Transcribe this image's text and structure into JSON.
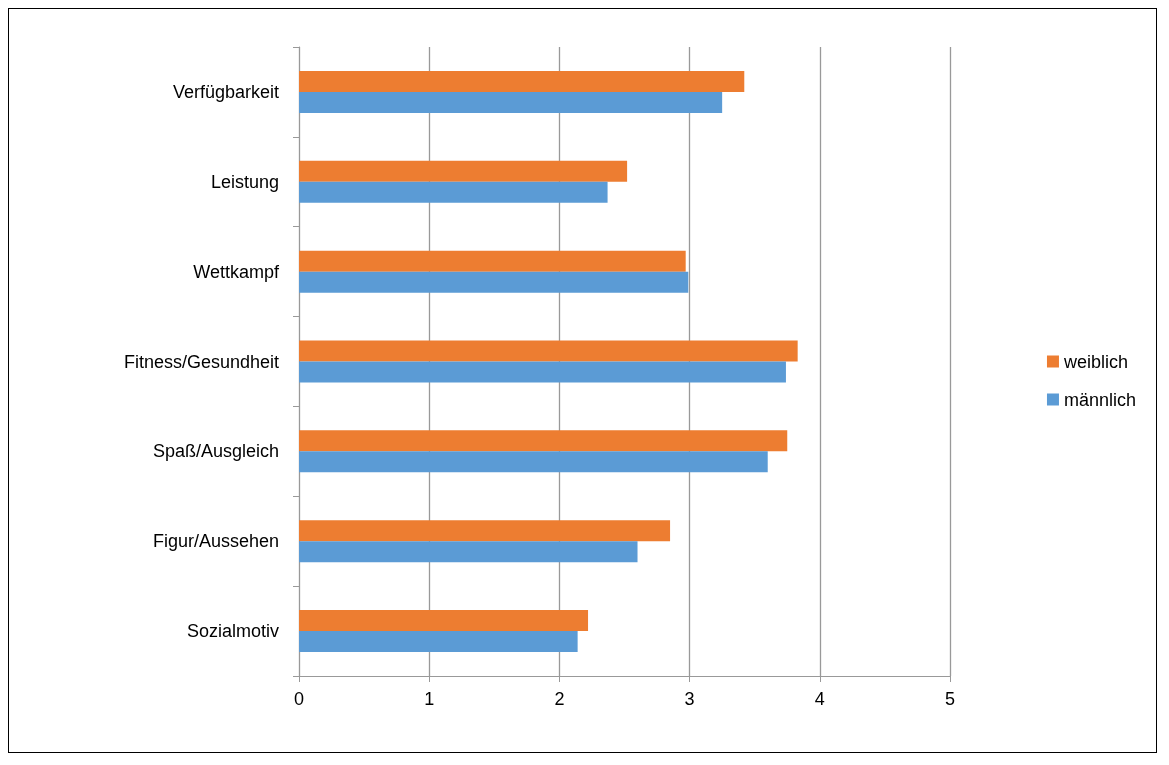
{
  "chart_data": {
    "type": "bar",
    "orientation": "horizontal",
    "categories": [
      "Verfügbarkeit",
      "Leistung",
      "Wettkampf",
      "Fitness/Gesundheit",
      "Spaß/Ausgleich",
      "Figur/Aussehen",
      "Sozialmotiv"
    ],
    "series": [
      {
        "name": "weiblich",
        "color": "#ed7d31",
        "values": [
          3.42,
          2.52,
          2.97,
          3.83,
          3.75,
          2.85,
          2.22
        ]
      },
      {
        "name": "männlich",
        "color": "#5b9bd5",
        "values": [
          3.25,
          2.37,
          2.99,
          3.74,
          3.6,
          2.6,
          2.14
        ]
      }
    ],
    "xlim": [
      0,
      5
    ],
    "xticks": [
      0,
      1,
      2,
      3,
      4,
      5
    ],
    "grid": "x",
    "legend": "right"
  }
}
